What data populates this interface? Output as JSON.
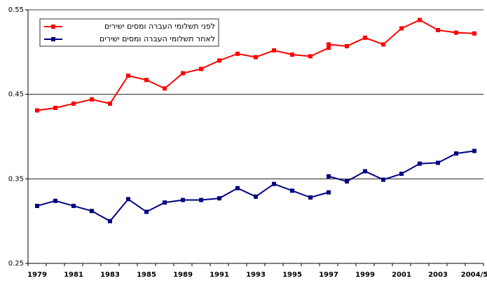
{
  "chart_data": {
    "type": "line",
    "categories": [
      "1979",
      null,
      "1981",
      null,
      "1983",
      null,
      "1985",
      null,
      "1989",
      null,
      "1991",
      null,
      "1993",
      null,
      "1995",
      null,
      "1997",
      null,
      "1999",
      null,
      "2001",
      null,
      "2003",
      null,
      "2004/5"
    ],
    "series": [
      {
        "name": "לפני תשלומי העברה ומסים ישירים",
        "color": "#ff0000",
        "values": [
          0.431,
          0.434,
          0.439,
          0.444,
          0.439,
          0.472,
          0.467,
          0.457,
          0.475,
          0.48,
          0.49,
          0.498,
          0.494,
          0.502,
          0.497,
          0.495,
          0.505,
          null,
          null,
          null,
          null,
          null,
          null,
          null,
          null
        ],
        "values2": [
          null,
          null,
          null,
          null,
          null,
          null,
          null,
          null,
          null,
          null,
          null,
          null,
          null,
          null,
          null,
          null,
          0.509,
          0.507,
          0.517,
          0.509,
          0.528,
          0.538,
          0.526,
          0.523,
          0.522
        ]
      },
      {
        "name": "לאחר תשלומי העברה ומסים ישירים",
        "color": "#000080",
        "values": [
          0.318,
          0.324,
          0.318,
          0.312,
          0.3,
          0.326,
          0.311,
          0.322,
          0.325,
          0.325,
          0.327,
          0.339,
          0.329,
          0.344,
          0.336,
          0.328,
          0.334,
          null,
          null,
          null,
          null,
          null,
          null,
          null,
          null
        ],
        "values2": [
          null,
          null,
          null,
          null,
          null,
          null,
          null,
          null,
          null,
          null,
          null,
          null,
          null,
          null,
          null,
          null,
          0.353,
          0.347,
          0.359,
          0.349,
          0.356,
          0.368,
          0.369,
          0.38,
          0.383
        ]
      }
    ],
    "ylim": [
      0.25,
      0.55
    ],
    "yticks": [
      0.25,
      0.35,
      0.45,
      0.55
    ],
    "grid": true,
    "legend": "upper left"
  }
}
